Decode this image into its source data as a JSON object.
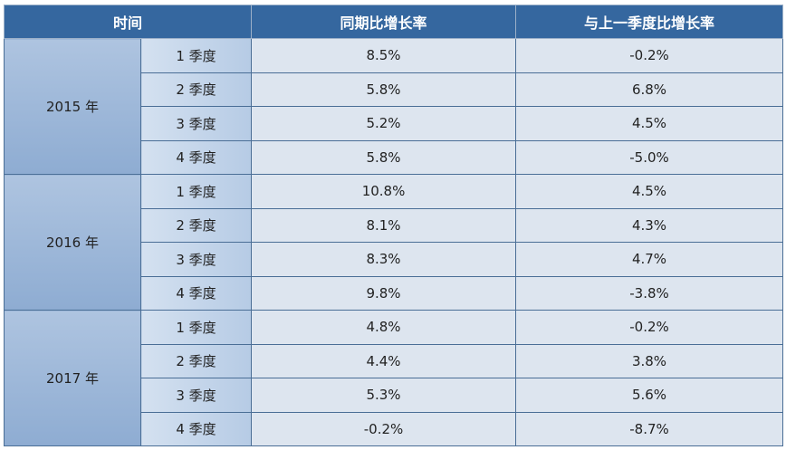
{
  "header": {
    "time_label": "时间",
    "yoy_label": "同期比增长率",
    "qoq_label": "与上一季度比增长率"
  },
  "rows": [
    {
      "year": "2015 年",
      "quarters": [
        {
          "q": "1 季度",
          "yoy": "8.5%",
          "qoq": "-0.2%"
        },
        {
          "q": "2 季度",
          "yoy": "5.8%",
          "qoq": "6.8%"
        },
        {
          "q": "3 季度",
          "yoy": "5.2%",
          "qoq": "4.5%"
        },
        {
          "q": "4 季度",
          "yoy": "5.8%",
          "qoq": "-5.0%"
        }
      ]
    },
    {
      "year": "2016 年",
      "quarters": [
        {
          "q": "1 季度",
          "yoy": "10.8%",
          "qoq": "4.5%"
        },
        {
          "q": "2 季度",
          "yoy": "8.1%",
          "qoq": "4.3%"
        },
        {
          "q": "3 季度",
          "yoy": "8.3%",
          "qoq": "4.7%"
        },
        {
          "q": "4 季度",
          "yoy": "9.8%",
          "qoq": "-3.8%"
        }
      ]
    },
    {
      "year": "2017 年",
      "quarters": [
        {
          "q": "1 季度",
          "yoy": "4.8%",
          "qoq": "-0.2%"
        },
        {
          "q": "2 季度",
          "yoy": "4.4%",
          "qoq": "3.8%"
        },
        {
          "q": "3 季度",
          "yoy": "5.3%",
          "qoq": "5.6%"
        },
        {
          "q": "4 季度",
          "yoy": "-0.2%",
          "qoq": "-8.7%"
        }
      ]
    }
  ]
}
